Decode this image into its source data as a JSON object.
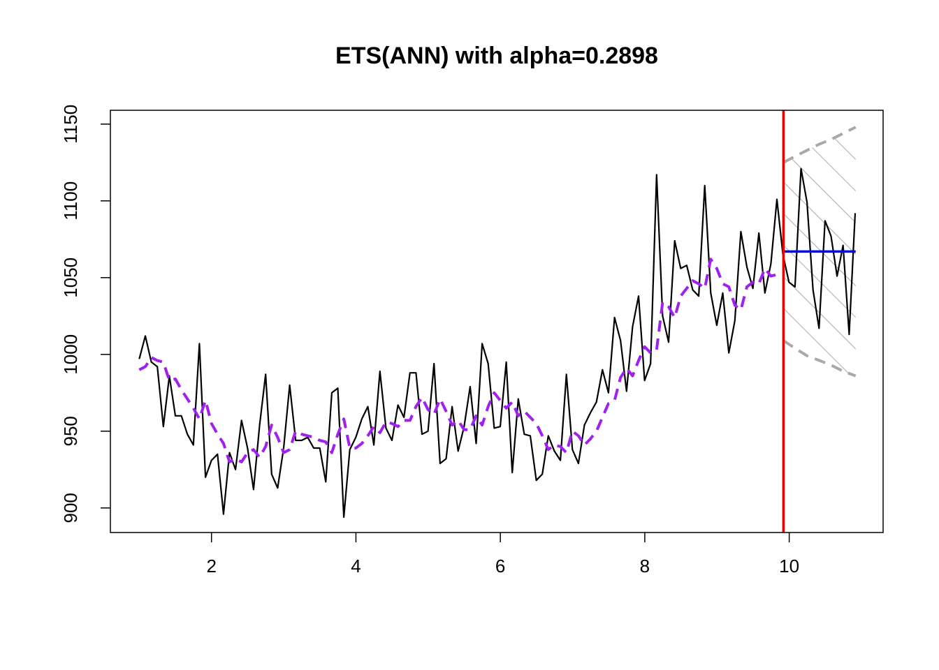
{
  "chart_data": {
    "type": "line",
    "title": "ETS(ANN) with alpha=0.2898",
    "xlabel": "",
    "ylabel": "",
    "xlim": [
      0.6,
      11.3
    ],
    "ylim": [
      884,
      1159
    ],
    "x_ticks": [
      2,
      4,
      6,
      8,
      10
    ],
    "y_ticks": [
      900,
      950,
      1000,
      1050,
      1100,
      1150
    ],
    "grid": false,
    "legend": "none",
    "series": [
      {
        "role": "actuals",
        "color": "#000000",
        "x_start": 1.0,
        "x_step": 0.0833,
        "values": [
          997,
          1012,
          995,
          992,
          953,
          986,
          960,
          960,
          948,
          941,
          1007,
          920,
          931,
          935,
          896,
          936,
          925,
          957,
          939,
          912,
          954,
          987,
          922,
          913,
          939,
          980,
          944,
          944,
          946,
          939,
          939,
          917,
          975,
          978,
          894,
          938,
          946,
          958,
          966,
          941,
          989,
          952,
          944,
          967,
          959,
          988,
          988,
          948,
          950,
          994,
          929,
          932,
          966,
          937,
          953,
          979,
          942,
          1007,
          994,
          952,
          953,
          995,
          923,
          971,
          948,
          947,
          918,
          922,
          947,
          937,
          931,
          987,
          938,
          929,
          954,
          962,
          969,
          990,
          975,
          1024,
          1009,
          976,
          1018,
          1038,
          983,
          994,
          1117,
          1025,
          1008,
          1074,
          1056,
          1058,
          1042,
          1038,
          1110,
          1040,
          1019,
          1040,
          1001,
          1022,
          1080,
          1057,
          1043,
          1079,
          1040,
          1059,
          1101,
          1065,
          1047,
          1044,
          1121,
          1099,
          1042,
          1017,
          1087,
          1077,
          1051,
          1071,
          1013,
          1092
        ]
      },
      {
        "role": "fitted",
        "color": "#a020f0",
        "x_start": 1.0,
        "x_step": 0.0833,
        "values": [
          990,
          992,
          998,
          996,
          995,
          983,
          984,
          977,
          971,
          965,
          958,
          970,
          955,
          948,
          942,
          930,
          932,
          930,
          936,
          938,
          933,
          940,
          954,
          946,
          936,
          938,
          950,
          948,
          947,
          946,
          944,
          943,
          936,
          948,
          958,
          939,
          939,
          942,
          947,
          953,
          949,
          956,
          955,
          953,
          957,
          957,
          966,
          972,
          964,
          961,
          971,
          963,
          954,
          957,
          951,
          951,
          960,
          954,
          966,
          975,
          970,
          965,
          969,
          960,
          963,
          959,
          955,
          947,
          938,
          941,
          940,
          936,
          950,
          947,
          941,
          945,
          950,
          959,
          968,
          970,
          985,
          991,
          986,
          996,
          1005,
          1001,
          1003,
          1034,
          1031,
          1024,
          1038,
          1043,
          1048,
          1046,
          1043,
          1062,
          1056,
          1046,
          1044,
          1032,
          1029,
          1044,
          1047,
          1046,
          1056,
          1051,
          1052
        ]
      },
      {
        "role": "forecast",
        "color": "#0000ff",
        "x": [
          9.92,
          10.92
        ],
        "values": [
          1067,
          1067
        ]
      },
      {
        "role": "upper-bound",
        "color": "#a9a9a9",
        "x": [
          9.92,
          10.08,
          10.25,
          10.42,
          10.58,
          10.75,
          10.92
        ],
        "values": [
          1125,
          1129,
          1133,
          1137,
          1140,
          1144,
          1148
        ]
      },
      {
        "role": "lower-bound",
        "color": "#a9a9a9",
        "x": [
          9.92,
          10.08,
          10.25,
          10.42,
          10.58,
          10.75,
          10.92
        ],
        "values": [
          1009,
          1004,
          999,
          996,
          993,
          989,
          986
        ]
      }
    ],
    "vline": {
      "x": 9.92,
      "color": "#ee0000"
    }
  }
}
